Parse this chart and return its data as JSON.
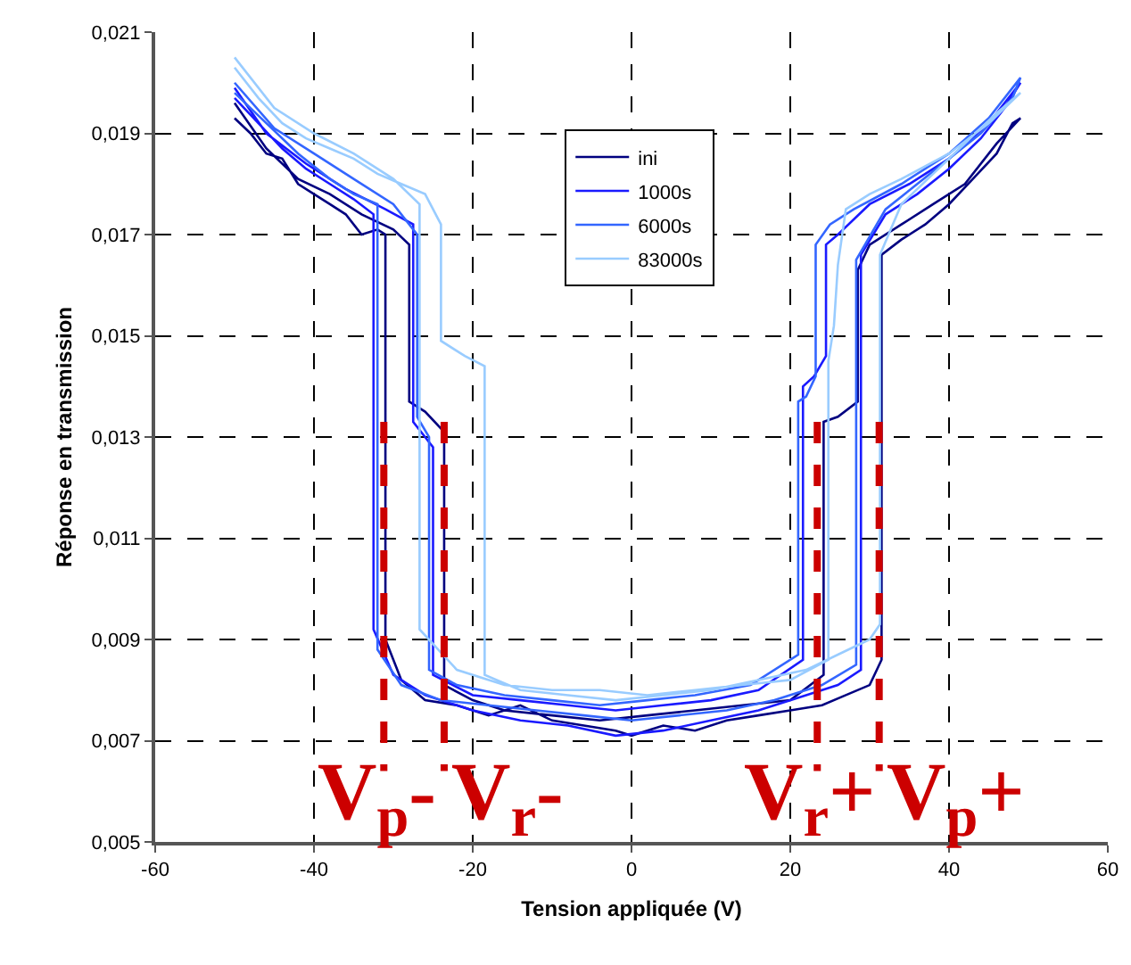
{
  "chart_data": {
    "type": "line",
    "xlabel": "Tension appliquée (V)",
    "ylabel": "Réponse en transmission",
    "xlim": [
      -60,
      60
    ],
    "xticks": [
      -60,
      -40,
      -20,
      0,
      20,
      40,
      60
    ],
    "ylim": [
      0.005,
      0.021
    ],
    "yticks": [
      {
        "value": 0.005,
        "label": "0,005"
      },
      {
        "value": 0.007,
        "label": "0,007"
      },
      {
        "value": 0.009,
        "label": "0,009"
      },
      {
        "value": 0.011,
        "label": "0,011"
      },
      {
        "value": 0.013,
        "label": "0,013"
      },
      {
        "value": 0.015,
        "label": "0,015"
      },
      {
        "value": 0.017,
        "label": "0,017"
      },
      {
        "value": 0.019,
        "label": "0,019"
      },
      {
        "value": 0.021,
        "label": "0,021"
      }
    ],
    "grid": true,
    "legend": "top center",
    "marker": "none",
    "line_style": "solid",
    "series": [
      {
        "name": "ini",
        "color": "#000080",
        "x": [
          -50,
          -48,
          -46,
          -44,
          -42,
          -40,
          -38,
          -36,
          -34,
          -32,
          -31,
          -31,
          -29,
          -26,
          -22,
          -18,
          -14,
          -10,
          -6,
          -2,
          0,
          4,
          8,
          12,
          16,
          20,
          24,
          27,
          30,
          31.5,
          31.5,
          34,
          37,
          40,
          43,
          46,
          48,
          49,
          46,
          42,
          38,
          34,
          30,
          28.5,
          28.5,
          26,
          24.2,
          24.2,
          20,
          14,
          8,
          2,
          -4,
          -10,
          -16,
          -20,
          -23.6,
          -23.6,
          -26,
          -28,
          -28,
          -30,
          -34,
          -38,
          -42,
          -46,
          -50
        ],
        "values": [
          0.0193,
          0.019,
          0.0186,
          0.0185,
          0.018,
          0.0178,
          0.0176,
          0.0174,
          0.017,
          0.0171,
          0.017,
          0.009,
          0.0082,
          0.0078,
          0.0077,
          0.0075,
          0.0077,
          0.0074,
          0.0073,
          0.0072,
          0.0071,
          0.0073,
          0.0072,
          0.0074,
          0.0075,
          0.0076,
          0.0077,
          0.0079,
          0.0081,
          0.0086,
          0.0166,
          0.0169,
          0.0172,
          0.0176,
          0.0181,
          0.0186,
          0.0192,
          0.0193,
          0.0188,
          0.018,
          0.0176,
          0.0172,
          0.0168,
          0.0163,
          0.0137,
          0.0134,
          0.0133,
          0.0083,
          0.0078,
          0.0077,
          0.0076,
          0.0075,
          0.0074,
          0.0075,
          0.0076,
          0.0078,
          0.0081,
          0.0131,
          0.0135,
          0.0137,
          0.0168,
          0.0171,
          0.0174,
          0.0178,
          0.0181,
          0.0187,
          0.0196
        ]
      },
      {
        "name": "1000s",
        "color": "#1a1aff",
        "x": [
          -50,
          -47,
          -44,
          -41,
          -38,
          -35,
          -32.5,
          -32.5,
          -30,
          -26,
          -20,
          -14,
          -8,
          -2,
          4,
          10,
          16,
          22,
          26,
          28.9,
          28.9,
          32,
          36,
          40,
          44,
          47,
          49,
          45,
          40,
          35,
          30,
          26,
          24.5,
          24.5,
          23,
          21.6,
          21.6,
          16,
          10,
          4,
          -2,
          -8,
          -14,
          -20,
          -25,
          -25,
          -27.5,
          -27.5,
          -31,
          -36,
          -41,
          -46,
          -50
        ],
        "values": [
          0.0197,
          0.0192,
          0.0187,
          0.0183,
          0.018,
          0.0177,
          0.0174,
          0.0092,
          0.0083,
          0.0079,
          0.0076,
          0.0074,
          0.0073,
          0.0071,
          0.0072,
          0.0074,
          0.0076,
          0.0079,
          0.0081,
          0.0084,
          0.0166,
          0.0174,
          0.0178,
          0.0183,
          0.0189,
          0.0195,
          0.02,
          0.0192,
          0.0185,
          0.018,
          0.0176,
          0.017,
          0.0168,
          0.0146,
          0.0142,
          0.014,
          0.0086,
          0.008,
          0.0078,
          0.0077,
          0.0076,
          0.0077,
          0.0078,
          0.0079,
          0.0083,
          0.0128,
          0.0133,
          0.0172,
          0.0175,
          0.0179,
          0.0184,
          0.019,
          0.0199
        ]
      },
      {
        "name": "6000s",
        "color": "#3366ff",
        "x": [
          -50,
          -46,
          -42,
          -38,
          -35,
          -32,
          -32,
          -29,
          -24,
          -18,
          -12,
          -6,
          0,
          6,
          12,
          18,
          24,
          28.3,
          28.3,
          32,
          36,
          40,
          44,
          48,
          49,
          45,
          40,
          34,
          28,
          25,
          23.2,
          23.2,
          22,
          21,
          21,
          15,
          8,
          2,
          -4,
          -10,
          -16,
          -22,
          -25.5,
          -25.5,
          -27,
          -27,
          -30,
          -35,
          -40,
          -45,
          -50
        ],
        "values": [
          0.0198,
          0.0192,
          0.0186,
          0.0181,
          0.0178,
          0.0176,
          0.0088,
          0.0081,
          0.0078,
          0.0077,
          0.0076,
          0.0075,
          0.0074,
          0.0075,
          0.0076,
          0.0078,
          0.0081,
          0.0085,
          0.0165,
          0.0175,
          0.018,
          0.0185,
          0.019,
          0.0197,
          0.0201,
          0.0193,
          0.0186,
          0.018,
          0.0175,
          0.0172,
          0.0168,
          0.0142,
          0.0138,
          0.0137,
          0.0087,
          0.0081,
          0.0079,
          0.0078,
          0.0077,
          0.0078,
          0.0079,
          0.0081,
          0.0084,
          0.013,
          0.0134,
          0.017,
          0.0176,
          0.0181,
          0.0186,
          0.0191,
          0.02
        ]
      },
      {
        "name": "83000s",
        "color": "#99ccff",
        "x": [
          -50,
          -47,
          -44,
          -41,
          -38,
          -35,
          -32,
          -29,
          -26,
          -24,
          -24,
          -21,
          -18.5,
          -18.5,
          -14,
          -8,
          -2,
          4,
          10,
          16,
          22,
          26,
          30,
          31.3,
          31.3,
          34,
          38,
          42,
          46,
          49,
          45,
          40,
          34,
          30,
          27,
          26,
          25.5,
          24.8,
          24.8,
          20,
          14,
          8,
          2,
          -4,
          -10,
          -16,
          -22,
          -26.7,
          -26.7,
          -30,
          -35,
          -40,
          -45,
          -50
        ],
        "values": [
          0.0203,
          0.0197,
          0.0192,
          0.0189,
          0.0187,
          0.0185,
          0.0182,
          0.018,
          0.0178,
          0.0172,
          0.0149,
          0.0146,
          0.0144,
          0.0083,
          0.008,
          0.0079,
          0.0078,
          0.0079,
          0.008,
          0.0082,
          0.0084,
          0.0087,
          0.009,
          0.0093,
          0.0166,
          0.0176,
          0.0182,
          0.0188,
          0.0194,
          0.0198,
          0.0192,
          0.0186,
          0.0181,
          0.0178,
          0.0175,
          0.0164,
          0.0152,
          0.0145,
          0.0086,
          0.0082,
          0.0081,
          0.008,
          0.0079,
          0.008,
          0.008,
          0.0081,
          0.0084,
          0.0092,
          0.0176,
          0.0181,
          0.0186,
          0.019,
          0.0195,
          0.0205
        ]
      },
      {
        "color": "#cc0000",
        "line_style": "dashed",
        "x": [
          -31.2,
          -31.2
        ],
        "values": [
          0.0133,
          0.0064
        ]
      },
      {
        "color": "#cc0000",
        "line_style": "dashed",
        "x": [
          -23.6,
          -23.6
        ],
        "values": [
          0.0133,
          0.0064
        ]
      },
      {
        "color": "#cc0000",
        "line_style": "dashed",
        "x": [
          23.4,
          23.4
        ],
        "values": [
          0.0133,
          0.0064
        ]
      },
      {
        "color": "#cc0000",
        "line_style": "dashed",
        "x": [
          31.2,
          31.2
        ],
        "values": [
          0.0133,
          0.0064
        ]
      }
    ],
    "annotations": [
      "V$_{p}$-",
      "V$_{r}$-",
      "V$_{r}$+",
      "V$_{p}$+"
    ]
  }
}
